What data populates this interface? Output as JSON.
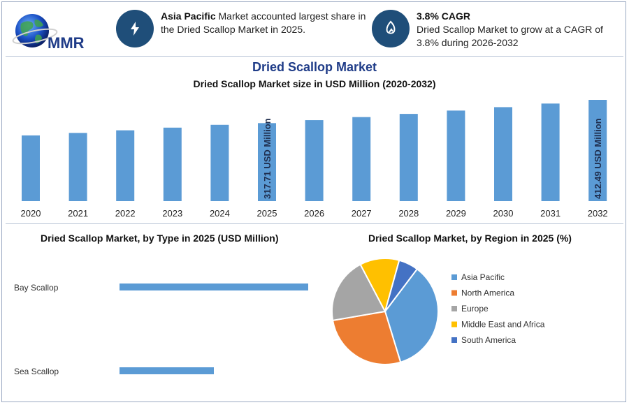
{
  "header": {
    "logo_text": "MMR",
    "info1": {
      "bold": "Asia Pacific",
      "text": " Market accounted largest share in the Dried Scallop Market in 2025.",
      "icon": "lightning-icon"
    },
    "info2": {
      "bold": "3.8% CAGR",
      "text": "Dried Scallop Market to grow at a CAGR of 3.8% during 2026-2032",
      "icon": "growth-icon"
    }
  },
  "main_title": "Dried Scallop Market",
  "colors": {
    "bar": "#5b9bd5",
    "navy": "#1f3c88"
  },
  "chart_data": [
    {
      "type": "bar",
      "title": "Dried Scallop Market size in USD Million (2020-2032)",
      "categories": [
        "2020",
        "2021",
        "2022",
        "2023",
        "2024",
        "2025",
        "2026",
        "2027",
        "2028",
        "2029",
        "2030",
        "2031",
        "2032"
      ],
      "values": [
        267.6,
        277.8,
        288.4,
        299.3,
        310.7,
        317.71,
        329.8,
        342.3,
        355.3,
        368.8,
        382.8,
        397.4,
        412.49
      ],
      "annotations": [
        {
          "index": 5,
          "label": "317.71 USD Million"
        },
        {
          "index": 12,
          "label": "412.49 USD Million"
        }
      ]
    },
    {
      "type": "bar",
      "orientation": "horizontal",
      "title": "Dried Scallop Market, by Type in 2025 (USD Million)",
      "categories": [
        "Bay Scallop",
        "Sea Scallop"
      ],
      "values": [
        200,
        100
      ]
    },
    {
      "type": "pie",
      "title": "Dried Scallop Market, by Region in 2025 (%)",
      "labels": [
        "Asia Pacific",
        "North America",
        "Europe",
        "Middle East and Africa",
        "South America"
      ],
      "values": [
        35,
        27,
        20,
        12,
        6
      ],
      "colors": [
        "#5b9bd5",
        "#ed7d31",
        "#a5a5a5",
        "#ffc000",
        "#4472c4"
      ],
      "legend": "right"
    }
  ]
}
